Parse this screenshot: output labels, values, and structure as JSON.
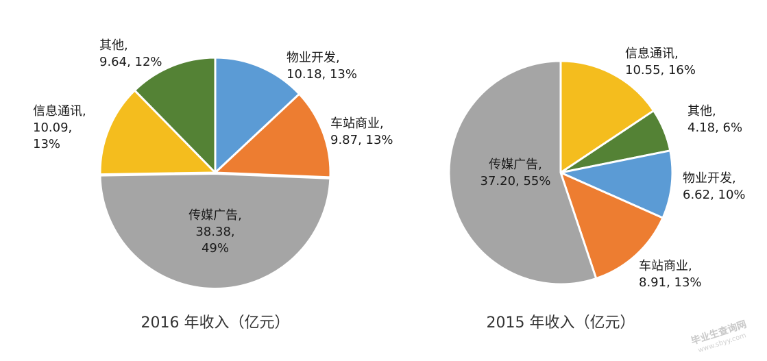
{
  "chart_data": [
    {
      "type": "pie",
      "title": "2016 年收入（亿元）",
      "slices": [
        {
          "name": "物业开发",
          "value": 10.18,
          "pct": "13%",
          "color": "#5b9bd5",
          "label": [
            "物业开发,",
            "10.18, 13%"
          ]
        },
        {
          "name": "车站商业",
          "value": 9.87,
          "pct": "13%",
          "color": "#ed7d31",
          "label": [
            "车站商业,",
            "9.87, 13%"
          ]
        },
        {
          "name": "传媒广告",
          "value": 38.38,
          "pct": "49%",
          "color": "#a5a5a5",
          "label": [
            "传媒广告,",
            "38.38,",
            "49%"
          ]
        },
        {
          "name": "信息通讯",
          "value": 10.09,
          "pct": "13%",
          "color": "#f4bd1e",
          "label": [
            "信息通讯,",
            "10.09,",
            "13%"
          ]
        },
        {
          "name": "其他",
          "value": 9.64,
          "pct": "12%",
          "color": "#548235",
          "label": [
            "其他,",
            "9.64, 12%"
          ]
        }
      ]
    },
    {
      "type": "pie",
      "title": "2015 年收入（亿元）",
      "slices": [
        {
          "name": "信息通讯",
          "value": 10.55,
          "pct": "16%",
          "color": "#f4bd1e",
          "label": [
            "信息通讯,",
            "10.55, 16%"
          ]
        },
        {
          "name": "其他",
          "value": 4.18,
          "pct": "6%",
          "color": "#548235",
          "label": [
            "其他,",
            "4.18, 6%"
          ]
        },
        {
          "name": "物业开发",
          "value": 6.62,
          "pct": "10%",
          "color": "#5b9bd5",
          "label": [
            "物业开发,",
            "6.62, 10%"
          ]
        },
        {
          "name": "车站商业",
          "value": 8.91,
          "pct": "13%",
          "color": "#ed7d31",
          "label": [
            "车站商业,",
            "8.91, 13%"
          ]
        },
        {
          "name": "传媒广告",
          "value": 37.2,
          "pct": "55%",
          "color": "#a5a5a5",
          "label": [
            "传媒广告,",
            "37.20, 55%"
          ]
        }
      ]
    }
  ],
  "watermark": {
    "text": "毕业生查询网",
    "url": "www.sbyy.com"
  }
}
